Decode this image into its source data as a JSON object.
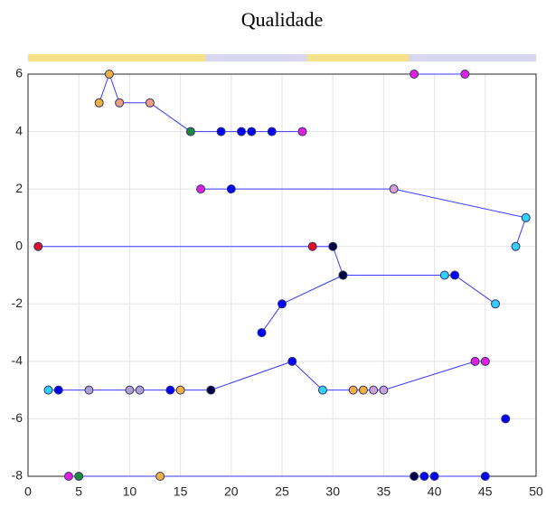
{
  "chart_data": {
    "type": "line",
    "title": "Qualidade",
    "xlim": [
      0,
      50
    ],
    "xticks": [
      0,
      5,
      10,
      15,
      20,
      25,
      30,
      35,
      40,
      45,
      50
    ],
    "ylim": [
      -8,
      6
    ],
    "yticks": [
      -8,
      -6,
      -4,
      -2,
      0,
      2,
      4,
      6
    ],
    "grid": true,
    "bands": [
      {
        "x0": 0,
        "x1": 17.5,
        "color": "#f7e08a"
      },
      {
        "x0": 17.5,
        "x1": 27.5,
        "color": "#d9d6f2"
      },
      {
        "x0": 27.5,
        "x1": 37.5,
        "color": "#f7e08a"
      },
      {
        "x0": 37.5,
        "x1": 50,
        "color": "#d9d6f2"
      }
    ],
    "series": [
      {
        "color": "#3a3aff",
        "x": [
          7,
          8,
          9,
          12,
          16,
          19,
          21,
          22,
          24,
          27
        ],
        "values": [
          5,
          6,
          5,
          5,
          4,
          4,
          4,
          4,
          4,
          4
        ],
        "marker_colors": [
          "#f0b040",
          "#f0b040",
          "#e8a080",
          "#e8a080",
          "#1a8a3a",
          "#0000ff",
          "#0000ff",
          "#0000ff",
          "#0000ff",
          "#e020e0"
        ]
      },
      {
        "color": "#3a3aff",
        "x": [
          38,
          43
        ],
        "values": [
          6,
          6
        ],
        "marker_colors": [
          "#e020e0",
          "#e020e0"
        ]
      },
      {
        "color": "#3a3aff",
        "x": [
          17,
          20,
          36,
          49,
          48
        ],
        "values": [
          2,
          2,
          2,
          1,
          0
        ],
        "marker_colors": [
          "#e020e0",
          "#0000ff",
          "#d8a0d0",
          "#30d0ff",
          "#30d0ff"
        ]
      },
      {
        "color": "#3a3aff",
        "x": [
          1,
          28,
          30,
          31,
          41,
          42,
          46
        ],
        "values": [
          0,
          0,
          0,
          -1,
          -1,
          -1,
          -2
        ],
        "marker_colors": [
          "#e0102a",
          "#e0102a",
          "#000040",
          "#000040",
          "#30d0ff",
          "#0000ff",
          "#30d0ff"
        ]
      },
      {
        "color": "#3a3aff",
        "x": [
          23,
          25,
          31
        ],
        "values": [
          -3,
          -2,
          -1
        ],
        "marker_colors": [
          "#0000ff",
          "#0000ff",
          "#000040"
        ]
      },
      {
        "color": "#3a3aff",
        "x": [
          2,
          3,
          6,
          10,
          11,
          14,
          15,
          18,
          26,
          29,
          32,
          33,
          34,
          35,
          44,
          45
        ],
        "values": [
          -5,
          -5,
          -5,
          -5,
          -5,
          -5,
          -5,
          -5,
          -4,
          -5,
          -5,
          -5,
          -5,
          -5,
          -4,
          -4
        ],
        "marker_colors": [
          "#30d0ff",
          "#0000ff",
          "#b0a0d0",
          "#b0a0d0",
          "#b0a0d0",
          "#0000ff",
          "#f0b040",
          "#000040",
          "#0000ff",
          "#30d0ff",
          "#f0b040",
          "#f0b040",
          "#c8a0d8",
          "#c8a0d8",
          "#e020e0",
          "#e020e0"
        ]
      },
      {
        "color": "#3a3aff",
        "x": [
          47
        ],
        "values": [
          -6
        ],
        "marker_colors": [
          "#0000ff"
        ]
      },
      {
        "color": "#3a3aff",
        "x": [
          4,
          5,
          13,
          38,
          39,
          40,
          45
        ],
        "values": [
          -8,
          -8,
          -8,
          -8,
          -8,
          -8,
          -8
        ],
        "marker_colors": [
          "#e020e0",
          "#1a8a3a",
          "#f0b040",
          "#000040",
          "#0000ff",
          "#0000ff",
          "#0000ff"
        ]
      }
    ]
  }
}
